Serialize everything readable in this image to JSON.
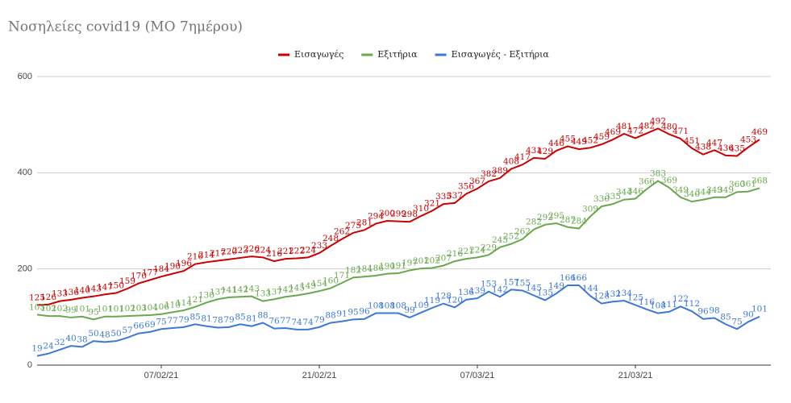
{
  "chart_data": {
    "type": "line",
    "title": "Νοσηλείες covid19 (ΜΟ 7ημέρου)",
    "categories": [
      null,
      null,
      null,
      null,
      null,
      null,
      null,
      null,
      null,
      null,
      null,
      "07/02/21",
      null,
      null,
      null,
      null,
      null,
      null,
      null,
      null,
      null,
      null,
      null,
      null,
      null,
      "21/02/21",
      null,
      null,
      null,
      null,
      null,
      null,
      null,
      null,
      null,
      null,
      null,
      null,
      null,
      "07/03/21",
      null,
      null,
      null,
      null,
      null,
      null,
      null,
      null,
      null,
      null,
      null,
      null,
      null,
      "21/03/21",
      null,
      null,
      null,
      null,
      null,
      null,
      null,
      null,
      null,
      null,
      null
    ],
    "series": [
      {
        "name": "Εισαγωγές",
        "color": "#cc0000",
        "values": [
          125,
          126,
          133,
          136,
          140,
          143,
          147,
          150,
          159,
          170,
          177,
          184,
          190,
          196,
          210,
          214,
          217,
          220,
          223,
          226,
          224,
          216,
          221,
          222,
          224,
          233,
          248,
          262,
          275,
          281,
          294,
          300,
          299,
          298,
          310,
          321,
          335,
          337,
          356,
          367,
          382,
          389,
          408,
          417,
          431,
          429,
          446,
          455,
          449,
          452,
          459,
          469,
          481,
          472,
          482,
          492,
          480,
          471,
          451,
          438,
          447,
          436,
          435,
          453,
          469
        ]
      },
      {
        "name": "Εξιτήρια",
        "color": "#6aa84f",
        "values": [
          105,
          102,
          102,
          99,
          101,
          95,
          101,
          101,
          102,
          103,
          104,
          106,
          110,
          114,
          121,
          130,
          137,
          141,
          142,
          143,
          133,
          137,
          142,
          145,
          149,
          154,
          160,
          171,
          182,
          184,
          186,
          190,
          191,
          197,
          201,
          202,
          207,
          216,
          221,
          224,
          229,
          245,
          252,
          262,
          282,
          292,
          295,
          287,
          284,
          309,
          330,
          335,
          344,
          346,
          366,
          383,
          369,
          349,
          340,
          344,
          349,
          349,
          360,
          361,
          368
        ]
      },
      {
        "name": "Εισαγωγές - Εξιτήρια",
        "color": "#3c78d8",
        "values": [
          19,
          24,
          32,
          40,
          38,
          50,
          48,
          50,
          57,
          66,
          69,
          75,
          77,
          79,
          85,
          81,
          78,
          79,
          85,
          81,
          88,
          76,
          77,
          74,
          74,
          79,
          88,
          91,
          95,
          96,
          108,
          108,
          108,
          99,
          109,
          119,
          128,
          120,
          136,
          139,
          153,
          142,
          157,
          155,
          145,
          135,
          149,
          166,
          166,
          144,
          128,
          132,
          134,
          125,
          116,
          108,
          111,
          122,
          112,
          96,
          98,
          85,
          75,
          90,
          101
        ]
      }
    ],
    "ylim": [
      0,
      600
    ],
    "yticks": [
      0,
      200,
      400,
      600
    ],
    "grid": true,
    "legend": "top"
  }
}
